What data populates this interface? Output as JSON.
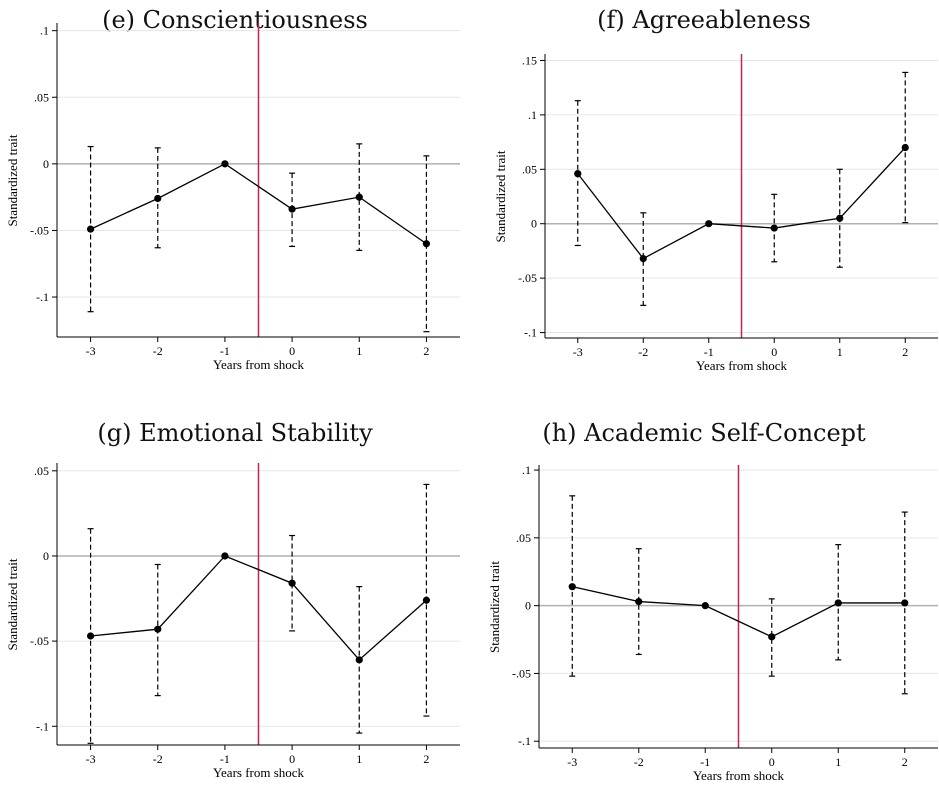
{
  "chart_data": [
    {
      "type": "line",
      "title": "(e) Conscientiousness",
      "xlabel": "Years from shock",
      "ylabel": "Standardized trait",
      "x": [
        -3,
        -2,
        -1,
        0,
        1,
        2
      ],
      "estimates": [
        -0.049,
        -0.026,
        0.0,
        -0.034,
        -0.025,
        -0.06
      ],
      "ci_lower": [
        -0.111,
        -0.063,
        0.0,
        -0.062,
        -0.065,
        -0.126
      ],
      "ci_upper": [
        0.013,
        0.012,
        0.0,
        -0.007,
        0.015,
        0.006
      ],
      "yticks": [
        0.1,
        0.05,
        0,
        -0.05,
        -0.1
      ],
      "ytick_labels": [
        ".1",
        ".05",
        "0",
        "-.05",
        "-.1"
      ],
      "xticks": [
        -3,
        -2,
        -1,
        0,
        1,
        2
      ],
      "xtick_labels": [
        "-3",
        "-2",
        "-1",
        "0",
        "1",
        "2"
      ],
      "ylim": [
        -0.13,
        0.105
      ],
      "xlim": [
        -3.5,
        2.5
      ],
      "vline_x": -0.5,
      "hline_y": 0,
      "grid": true
    },
    {
      "type": "line",
      "title": "(f) Agreeableness",
      "xlabel": "Years from shock",
      "ylabel": "Standardized trait",
      "x": [
        -3,
        -2,
        -1,
        0,
        1,
        2
      ],
      "estimates": [
        0.046,
        -0.032,
        0.0,
        -0.004,
        0.005,
        0.07
      ],
      "ci_lower": [
        -0.02,
        -0.075,
        0.0,
        -0.035,
        -0.04,
        0.001
      ],
      "ci_upper": [
        0.113,
        0.01,
        0.0,
        0.027,
        0.05,
        0.139
      ],
      "yticks": [
        0.15,
        0.1,
        0.05,
        0,
        -0.05,
        -0.1
      ],
      "ytick_labels": [
        ".15",
        ".1",
        ".05",
        "0",
        "-.05",
        "-.1"
      ],
      "xticks": [
        -3,
        -2,
        -1,
        0,
        1,
        2
      ],
      "xtick_labels": [
        "-3",
        "-2",
        "-1",
        "0",
        "1",
        "2"
      ],
      "ylim": [
        -0.105,
        0.155
      ],
      "xlim": [
        -3.5,
        2.5
      ],
      "vline_x": -0.5,
      "hline_y": 0,
      "grid": true
    },
    {
      "type": "line",
      "title": "(g) Emotional Stability",
      "xlabel": "Years from shock",
      "ylabel": "Standardized trait",
      "x": [
        -3,
        -2,
        -1,
        0,
        1,
        2
      ],
      "estimates": [
        -0.047,
        -0.043,
        0.0,
        -0.016,
        -0.061,
        -0.026
      ],
      "ci_lower": [
        -0.11,
        -0.082,
        0.0,
        -0.044,
        -0.104,
        -0.094
      ],
      "ci_upper": [
        0.016,
        -0.005,
        0.0,
        0.012,
        -0.018,
        0.042
      ],
      "yticks": [
        0.05,
        0,
        -0.05,
        -0.1
      ],
      "ytick_labels": [
        ".05",
        "0",
        "-.05",
        "-.1"
      ],
      "xticks": [
        -3,
        -2,
        -1,
        0,
        1,
        2
      ],
      "xtick_labels": [
        "-3",
        "-2",
        "-1",
        "0",
        "1",
        "2"
      ],
      "ylim": [
        -0.111,
        0.054
      ],
      "xlim": [
        -3.5,
        2.5
      ],
      "vline_x": -0.5,
      "hline_y": 0,
      "grid": true
    },
    {
      "type": "line",
      "title": "(h) Academic Self-Concept",
      "xlabel": "Years from shock",
      "ylabel": "Standardized trait",
      "x": [
        -3,
        -2,
        -1,
        0,
        1,
        2
      ],
      "estimates": [
        0.014,
        0.003,
        0.0,
        -0.023,
        0.002,
        0.002
      ],
      "ci_lower": [
        -0.052,
        -0.036,
        0.0,
        -0.052,
        -0.04,
        -0.065
      ],
      "ci_upper": [
        0.081,
        0.042,
        0.0,
        0.005,
        0.045,
        0.069
      ],
      "yticks": [
        0.1,
        0.05,
        0,
        -0.05,
        -0.1
      ],
      "ytick_labels": [
        ".1",
        ".05",
        "0",
        "-.05",
        "-.1"
      ],
      "xticks": [
        -3,
        -2,
        -1,
        0,
        1,
        2
      ],
      "xtick_labels": [
        "-3",
        "-2",
        "-1",
        "0",
        "1",
        "2"
      ],
      "ylim": [
        -0.105,
        0.103
      ],
      "xlim": [
        -3.5,
        2.5
      ],
      "vline_x": -0.5,
      "hline_y": 0,
      "grid": true
    }
  ],
  "colors": {
    "estimate_line": "#000000",
    "confidence_interval": "#000000",
    "shock_line": "#c0255a",
    "zero_line": "#b0b0b0",
    "grid": "#e6e6e6",
    "axis": "#000000"
  }
}
